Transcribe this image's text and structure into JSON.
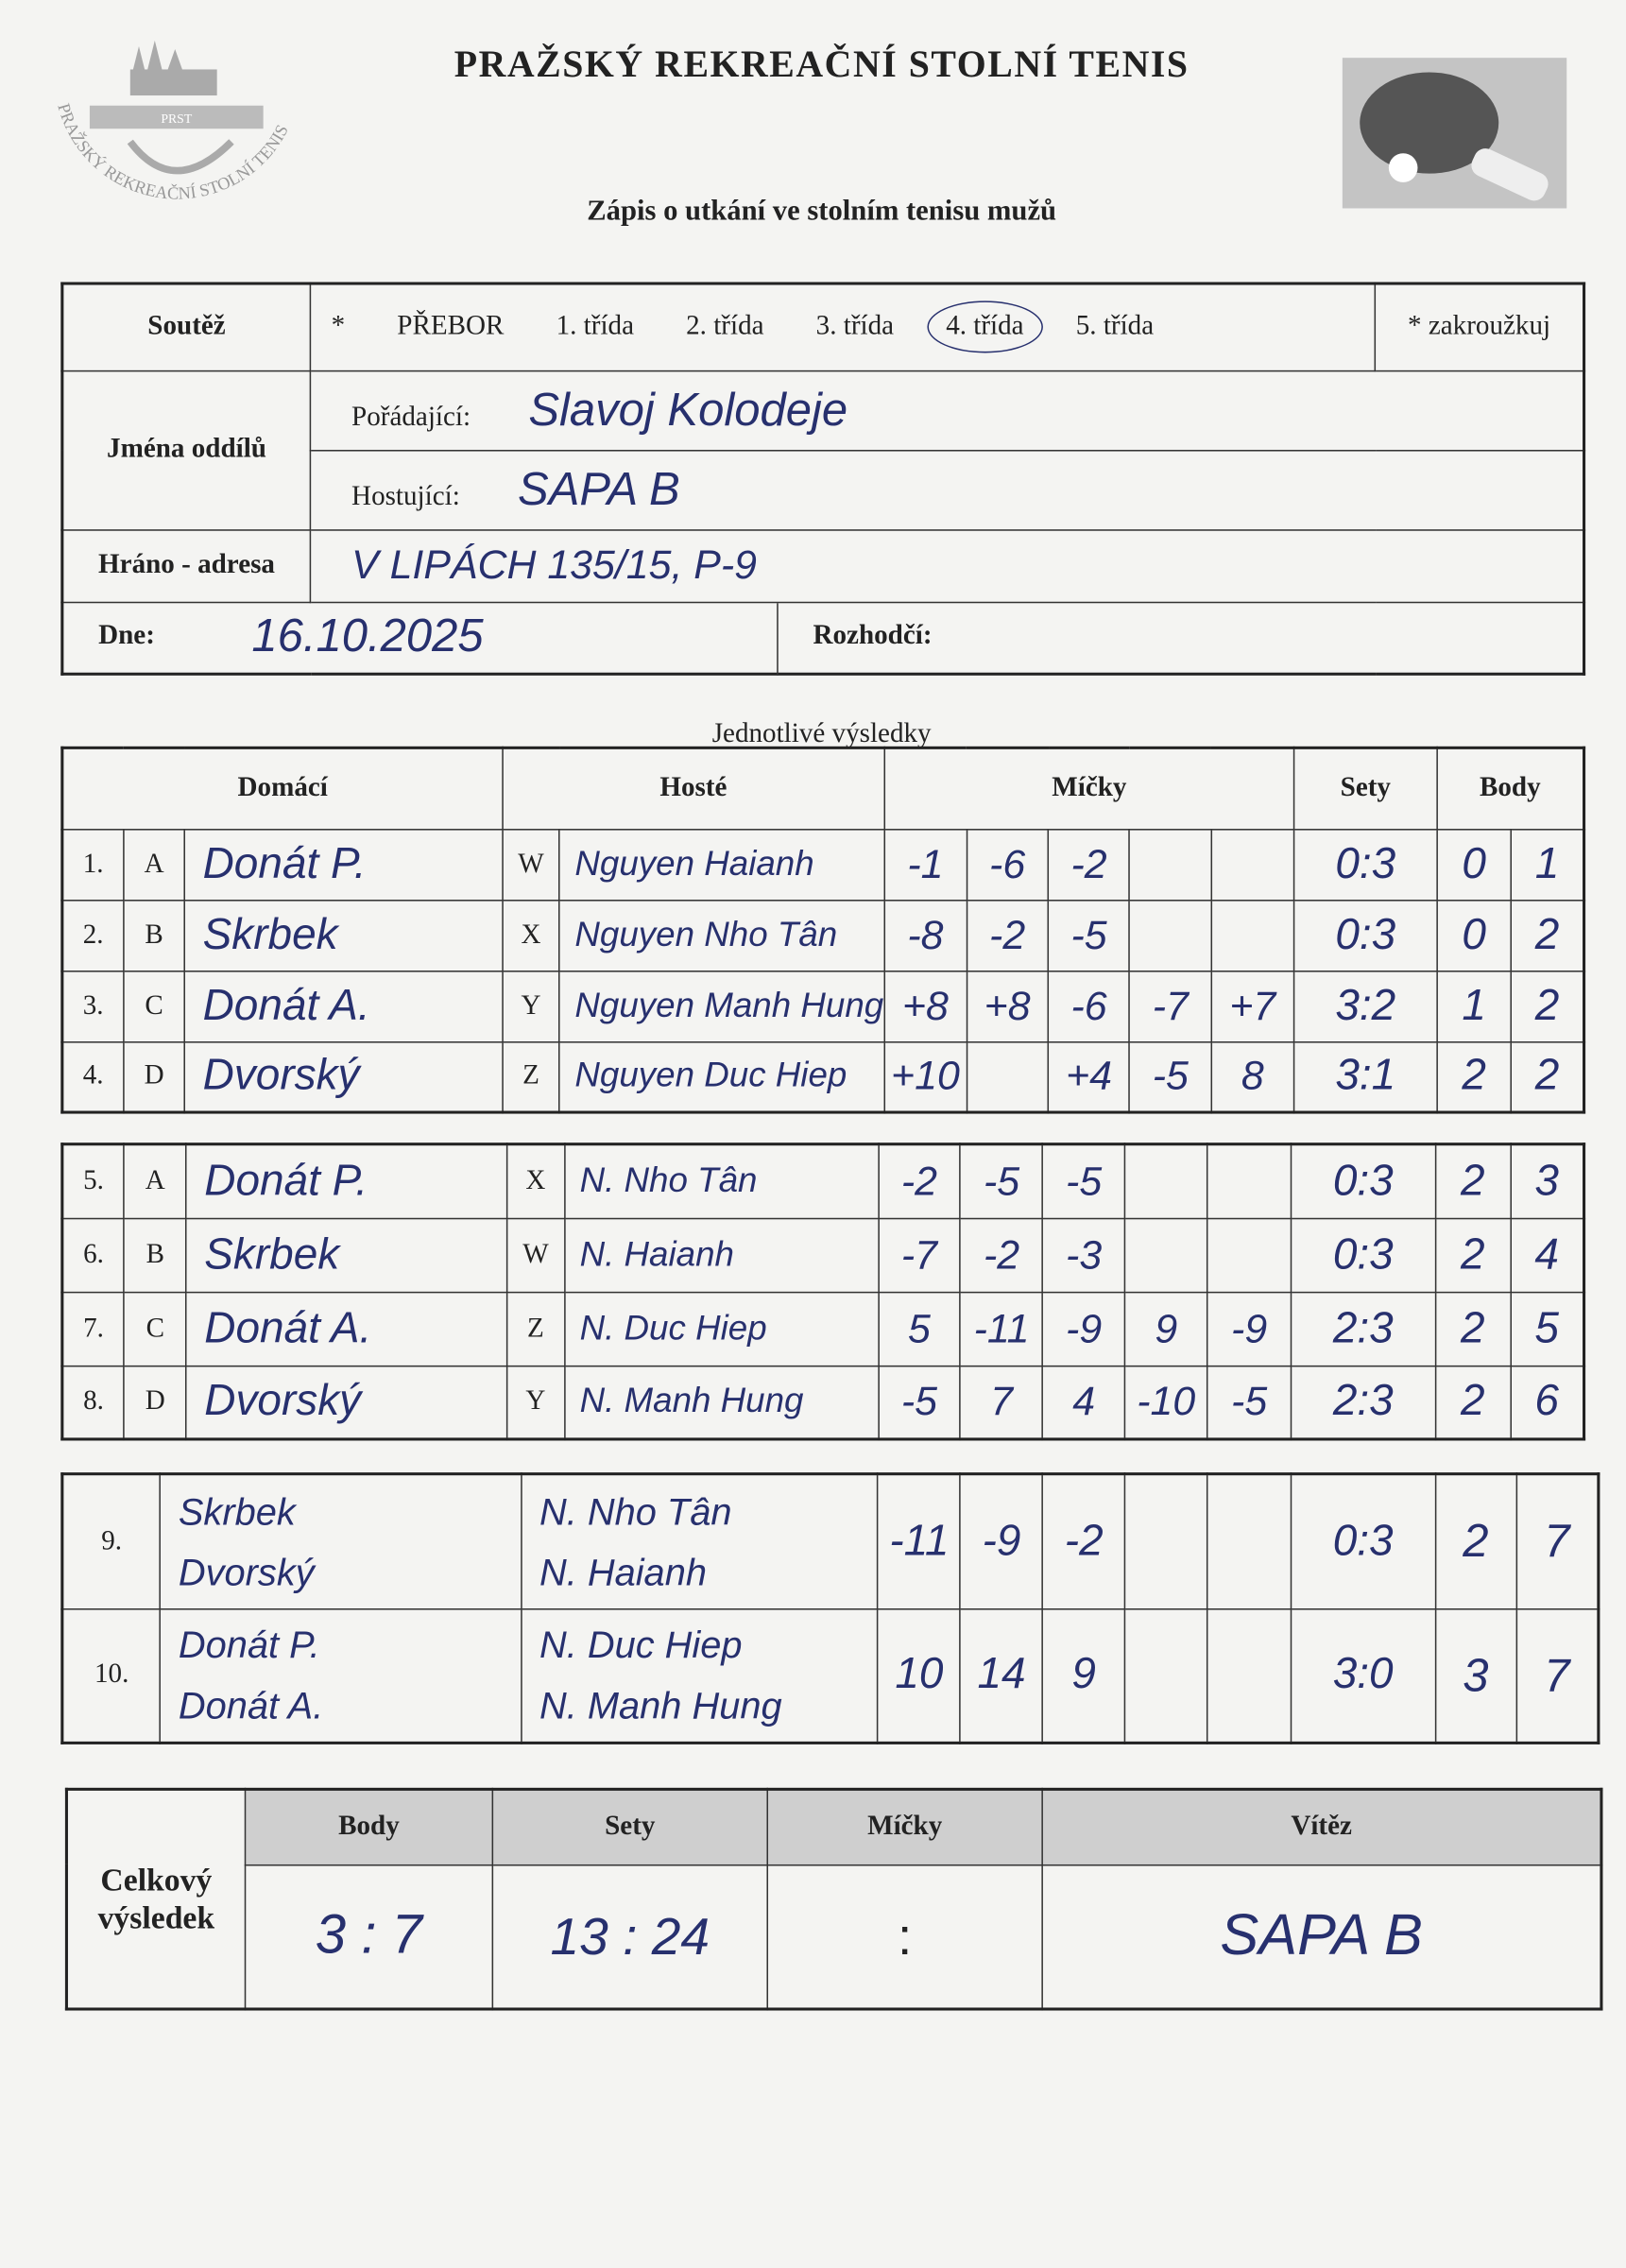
{
  "header": {
    "title": "PRAŽSKÝ REKREAČNÍ STOLNÍ TENIS",
    "subtitle": "Zápis o utkání ve stolním tenisu mužů",
    "logo_text": "PRAŽSKÝ REKREAČNÍ STOLNÍ TENIS",
    "logo_abbr": "PRST",
    "image": "table-tennis-paddle-icon"
  },
  "form": {
    "soutez_label": "Soutěž",
    "star": "*",
    "classes": [
      "PŘEBOR",
      "1. třída",
      "2. třída",
      "3. třída",
      "4. třída",
      "5. třída"
    ],
    "selected_class": "4. třída",
    "hint": "* zakroužkuj",
    "jmena_label": "Jména oddílů",
    "poradajici_label": "Pořádající:",
    "poradajici": "Slavoj Kolodeje",
    "hostujici_label": "Hostující:",
    "hostujici": "SAPA B",
    "adresa_label": "Hráno - adresa",
    "adresa": "V LIPÁCH 135/15, P-9",
    "dne_label": "Dne:",
    "dne": "16.10.2025",
    "rozhodci_label": "Rozhodčí:",
    "rozhodci": ""
  },
  "singles": {
    "caption": "Jednotlivé výsledky",
    "headers": {
      "home": "Domácí",
      "guest": "Hosté",
      "balls": "Míčky",
      "sets": "Sety",
      "points": "Body"
    },
    "rows": [
      {
        "no": "1.",
        "hl": "A",
        "home": "Donát P.",
        "gl": "W",
        "guest": "Nguyen Haianh",
        "balls": [
          "-1",
          "-6",
          "-2",
          "",
          ""
        ],
        "sets": "0:3",
        "p1": "0",
        "p2": "1"
      },
      {
        "no": "2.",
        "hl": "B",
        "home": "Skrbek",
        "gl": "X",
        "guest": "Nguyen Nho Tân",
        "balls": [
          "-8",
          "-2",
          "-5",
          "",
          ""
        ],
        "sets": "0:3",
        "p1": "0",
        "p2": "2"
      },
      {
        "no": "3.",
        "hl": "C",
        "home": "Donát A.",
        "gl": "Y",
        "guest": "Nguyen Manh Hung",
        "balls": [
          "+8",
          "+8",
          "-6",
          "-7",
          "+7"
        ],
        "sets": "3:2",
        "p1": "1",
        "p2": "2"
      },
      {
        "no": "4.",
        "hl": "D",
        "home": "Dvorský",
        "gl": "Z",
        "guest": "Nguyen Duc Hiep",
        "balls": [
          "+10",
          "",
          "+4",
          "-5",
          "8"
        ],
        "sets": "3:1",
        "p1": "2",
        "p2": "2"
      },
      {
        "no": "5.",
        "hl": "A",
        "home": "Donát P.",
        "gl": "X",
        "guest": "N. Nho Tân",
        "balls": [
          "-2",
          "-5",
          "-5",
          "",
          ""
        ],
        "sets": "0:3",
        "p1": "2",
        "p2": "3"
      },
      {
        "no": "6.",
        "hl": "B",
        "home": "Skrbek",
        "gl": "W",
        "guest": "N. Haianh",
        "balls": [
          "-7",
          "-2",
          "-3",
          "",
          ""
        ],
        "sets": "0:3",
        "p1": "2",
        "p2": "4"
      },
      {
        "no": "7.",
        "hl": "C",
        "home": "Donát A.",
        "gl": "Z",
        "guest": "N. Duc Hiep",
        "balls": [
          "5",
          "-11",
          "-9",
          "9",
          "-9"
        ],
        "sets": "2:3",
        "p1": "2",
        "p2": "5"
      },
      {
        "no": "8.",
        "hl": "D",
        "home": "Dvorský",
        "gl": "Y",
        "guest": "N. Manh Hung",
        "balls": [
          "-5",
          "7",
          "4",
          "-10",
          "-5"
        ],
        "sets": "2:3",
        "p1": "2",
        "p2": "6"
      }
    ]
  },
  "doubles": [
    {
      "no": "9.",
      "home": [
        "Skrbek",
        "Dvorský"
      ],
      "guest": [
        "N. Nho Tân",
        "N. Haianh"
      ],
      "balls": [
        "-11",
        "-9",
        "-2",
        "",
        ""
      ],
      "sets": "0:3",
      "p1": "2",
      "p2": "7"
    },
    {
      "no": "10.",
      "home": [
        "Donát P.",
        "Donát A."
      ],
      "guest": [
        "N. Duc Hiep",
        "N. Manh Hung"
      ],
      "balls": [
        "10",
        "14",
        "9",
        "",
        ""
      ],
      "sets": "3:0",
      "p1": "3",
      "p2": "7"
    }
  ],
  "summary": {
    "label1": "Celkový",
    "label2": "výsledek",
    "headers": [
      "Body",
      "Sety",
      "Míčky",
      "Vítěz"
    ],
    "body": "3 : 7",
    "sety": "13 : 24",
    "micky": ":",
    "vitez": "SAPA B"
  }
}
